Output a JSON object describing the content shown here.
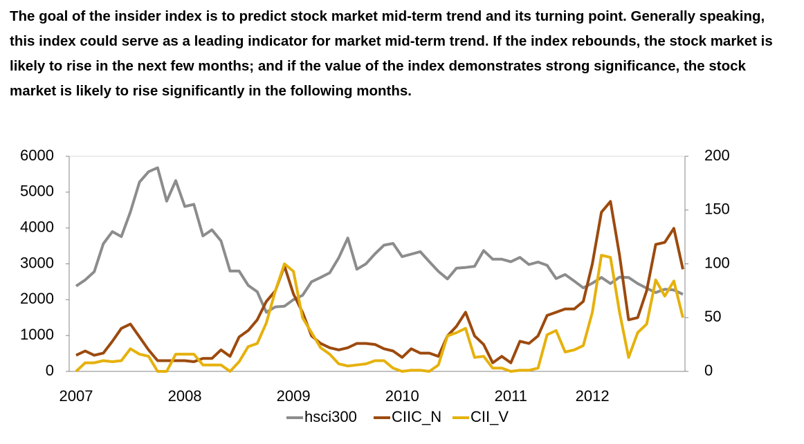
{
  "chart_data": {
    "type": "line",
    "description": "The goal of the insider index is to predict stock market mid-term trend and its turning point. Generally speaking, this index could serve as a leading indicator for market mid-term trend. If the index rebounds, the stock market is likely to rise in the next few months; and if the value of the index demonstrates strong significance, the stock market is likely to rise significantly in the following months.",
    "categories": [
      "2007",
      null,
      null,
      null,
      null,
      null,
      null,
      null,
      null,
      null,
      null,
      null,
      "2008",
      null,
      null,
      null,
      null,
      null,
      null,
      null,
      null,
      null,
      null,
      null,
      "2009",
      null,
      null,
      null,
      null,
      null,
      null,
      null,
      null,
      null,
      null,
      null,
      "2010",
      null,
      null,
      null,
      null,
      null,
      null,
      null,
      null,
      null,
      null,
      null,
      "2011",
      null,
      null,
      null,
      null,
      null,
      null,
      null,
      null,
      "2012",
      null,
      null,
      null,
      null,
      null,
      null,
      null,
      null,
      null,
      null
    ],
    "series": [
      {
        "name": "hsci300",
        "color": "#8c8c8c",
        "values": [
          2380,
          2550,
          2780,
          3560,
          3900,
          3760,
          4450,
          5280,
          5570,
          5680,
          4750,
          5320,
          4600,
          4660,
          3780,
          3950,
          3640,
          2800,
          2800,
          2400,
          2220,
          1650,
          1800,
          1820,
          2000,
          2120,
          2500,
          2620,
          2750,
          3170,
          3720,
          2850,
          3000,
          3280,
          3520,
          3570,
          3200,
          3270,
          3340,
          3060,
          2790,
          2580,
          2880,
          2900,
          2930,
          3370,
          3130,
          3130,
          3060,
          3180,
          2980,
          3050,
          2960,
          2590,
          2700,
          2520,
          2330,
          2460,
          2620,
          2450,
          2630,
          2620,
          2450,
          2320,
          2200,
          2290,
          2270,
          2150
        ]
      },
      {
        "name": "CIIC_N",
        "color": "#9c4a0e",
        "axis": "y2",
        "values": [
          15,
          19,
          15,
          17,
          28,
          40,
          44,
          32,
          20,
          10,
          10,
          10,
          10,
          9,
          12,
          12,
          20,
          14,
          32,
          38,
          48,
          65,
          75,
          98,
          72,
          55,
          33,
          26,
          22,
          20,
          22,
          26,
          26,
          25,
          21,
          19,
          13,
          21,
          17,
          17,
          14,
          33,
          42,
          55,
          33,
          25,
          8,
          14,
          8,
          28,
          26,
          33,
          52,
          55,
          58,
          58,
          65,
          100,
          148,
          158,
          108,
          48,
          50,
          75,
          118,
          120,
          133,
          95
        ]
      },
      {
        "name": "CII_V",
        "color": "#e6b10c",
        "axis": "y2",
        "values": [
          0,
          8,
          8,
          10,
          9,
          10,
          21,
          16,
          14,
          0,
          0,
          16,
          16,
          16,
          6,
          6,
          6,
          0,
          9,
          23,
          26,
          45,
          75,
          100,
          93,
          50,
          36,
          22,
          16,
          7,
          5,
          6,
          7,
          10,
          10,
          3,
          0,
          1,
          1,
          0,
          6,
          33,
          36,
          40,
          13,
          14,
          3,
          3,
          0,
          1,
          1,
          3,
          34,
          38,
          18,
          20,
          24,
          55,
          108,
          106,
          55,
          13,
          36,
          44,
          85,
          70,
          84,
          50
        ]
      }
    ],
    "ylim": [
      0,
      6000
    ],
    "yticks": [
      0,
      1000,
      2000,
      3000,
      4000,
      5000,
      6000
    ],
    "y2lim": [
      0,
      200
    ],
    "y2ticks": [
      0,
      50,
      100,
      150,
      200
    ],
    "legend": "bottom"
  }
}
